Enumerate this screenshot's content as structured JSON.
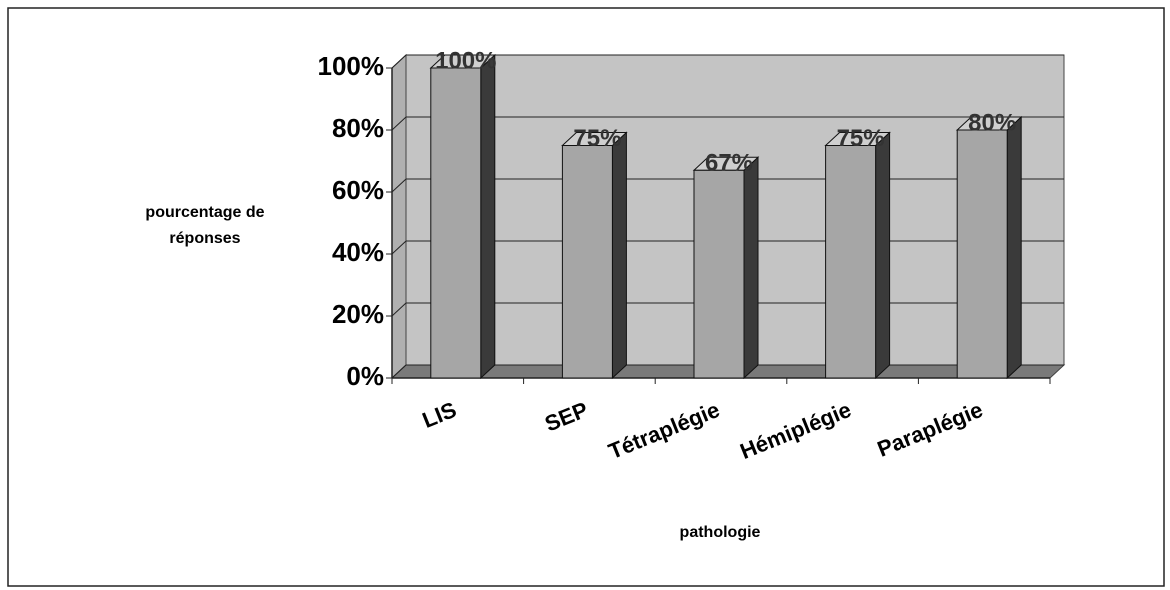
{
  "chart_data": {
    "type": "bar3d",
    "x_label": "pathologie",
    "y_label": "pourcentage de réponses",
    "categories": [
      "LIS",
      "SEP",
      "Tétraplégie",
      "Hémiplégie",
      "Paraplégie"
    ],
    "values": [
      100,
      75,
      67,
      75,
      80
    ],
    "value_labels": [
      "100%",
      "75%",
      "67%",
      "75%",
      "80%"
    ],
    "color": "#a6a6a6",
    "ylim": [
      0,
      100
    ],
    "yticks": [
      {
        "value": 0,
        "label": "0%"
      },
      {
        "value": 20,
        "label": "20%"
      },
      {
        "value": 40,
        "label": "40%"
      },
      {
        "value": 60,
        "label": "60%"
      },
      {
        "value": 80,
        "label": "80%"
      },
      {
        "value": 100,
        "label": "100%"
      }
    ],
    "grid": true
  }
}
